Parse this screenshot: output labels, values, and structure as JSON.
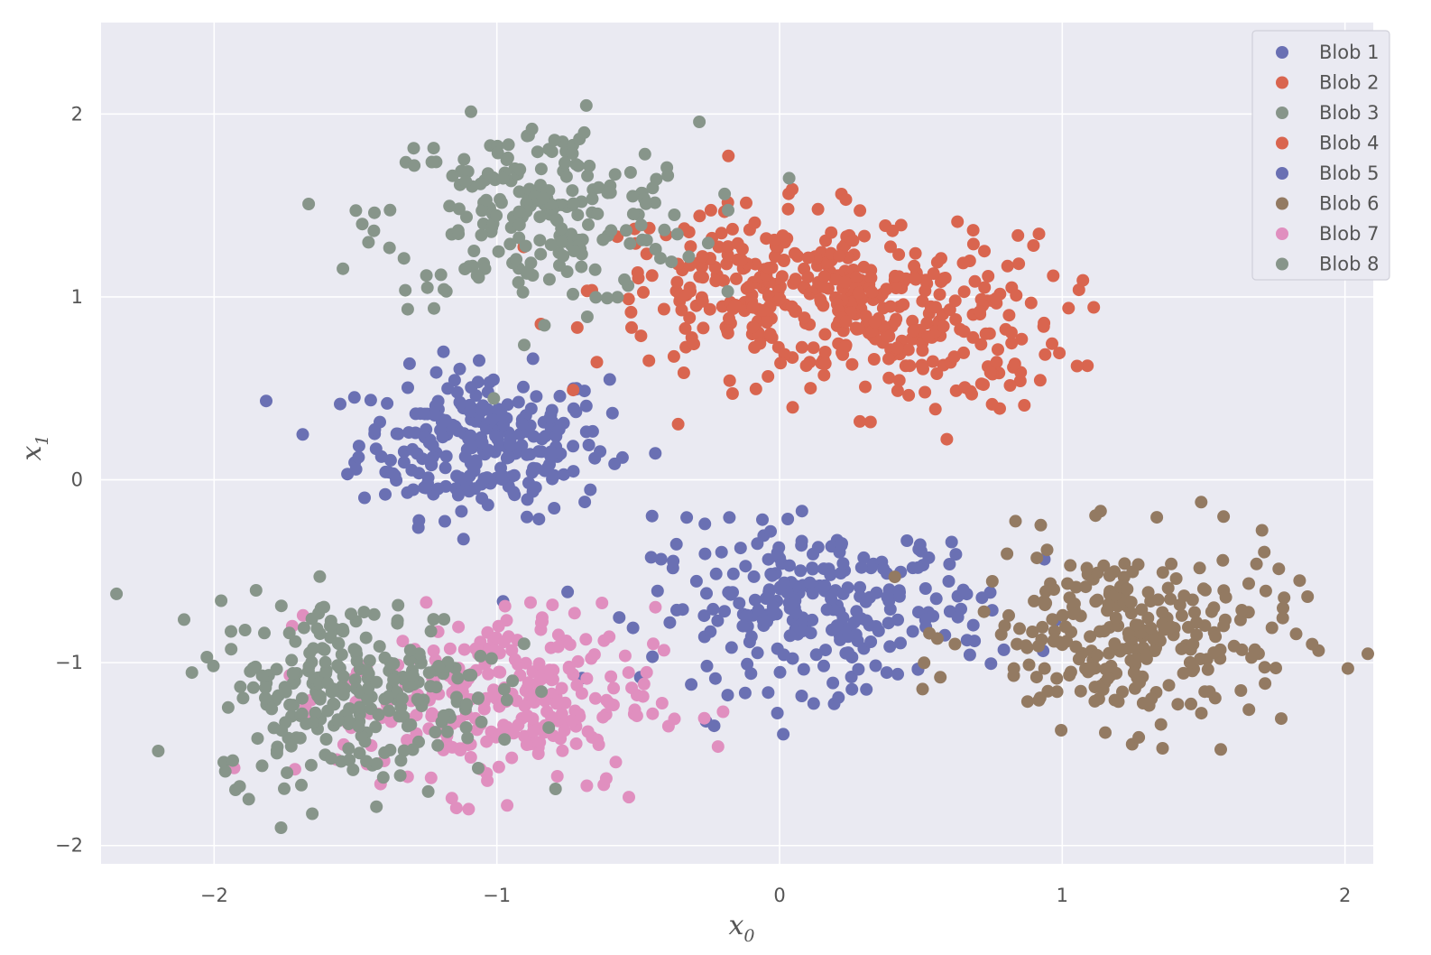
{
  "chart_data": {
    "type": "scatter",
    "xlabel": "x",
    "xlabel_sub": "0",
    "ylabel": "x",
    "ylabel_sub": "1",
    "xlim": [
      -2.4,
      2.1
    ],
    "ylim": [
      -2.1,
      2.5
    ],
    "xticks": [
      -2,
      -1,
      0,
      1,
      2
    ],
    "yticks": [
      -2,
      -1,
      0,
      1,
      2
    ],
    "xtick_labels": [
      "−2",
      "−1",
      "0",
      "1",
      "2"
    ],
    "ytick_labels": [
      "−2",
      "−1",
      "0",
      "1",
      "2"
    ],
    "grid": true,
    "legend_position": "top-right",
    "background": "#eaeaf2",
    "series": [
      {
        "name": "Blob 1",
        "color": "#6a70b3",
        "center": [
          -1.05,
          0.2
        ],
        "spread": [
          0.22,
          0.2
        ],
        "count": 260
      },
      {
        "name": "Blob 2",
        "color": "#d9654f",
        "center": [
          -0.05,
          1.05
        ],
        "spread": [
          0.3,
          0.22
        ],
        "count": 220
      },
      {
        "name": "Blob 3",
        "color": "#87958a",
        "center": [
          -0.85,
          1.45
        ],
        "spread": [
          0.28,
          0.25
        ],
        "count": 230
      },
      {
        "name": "Blob 4",
        "color": "#d9654f",
        "center": [
          0.45,
          0.85
        ],
        "spread": [
          0.28,
          0.24
        ],
        "count": 230
      },
      {
        "name": "Blob 5",
        "color": "#6a70b3",
        "center": [
          0.15,
          -0.7
        ],
        "spread": [
          0.3,
          0.22
        ],
        "count": 260
      },
      {
        "name": "Blob 6",
        "color": "#937a62",
        "center": [
          1.25,
          -0.85
        ],
        "spread": [
          0.28,
          0.25
        ],
        "count": 270
      },
      {
        "name": "Blob 7",
        "color": "#e08fbf",
        "center": [
          -1.0,
          -1.2
        ],
        "spread": [
          0.28,
          0.25
        ],
        "count": 270
      },
      {
        "name": "Blob 8",
        "color": "#87958a",
        "center": [
          -1.5,
          -1.15
        ],
        "spread": [
          0.25,
          0.25
        ],
        "count": 270
      }
    ]
  }
}
